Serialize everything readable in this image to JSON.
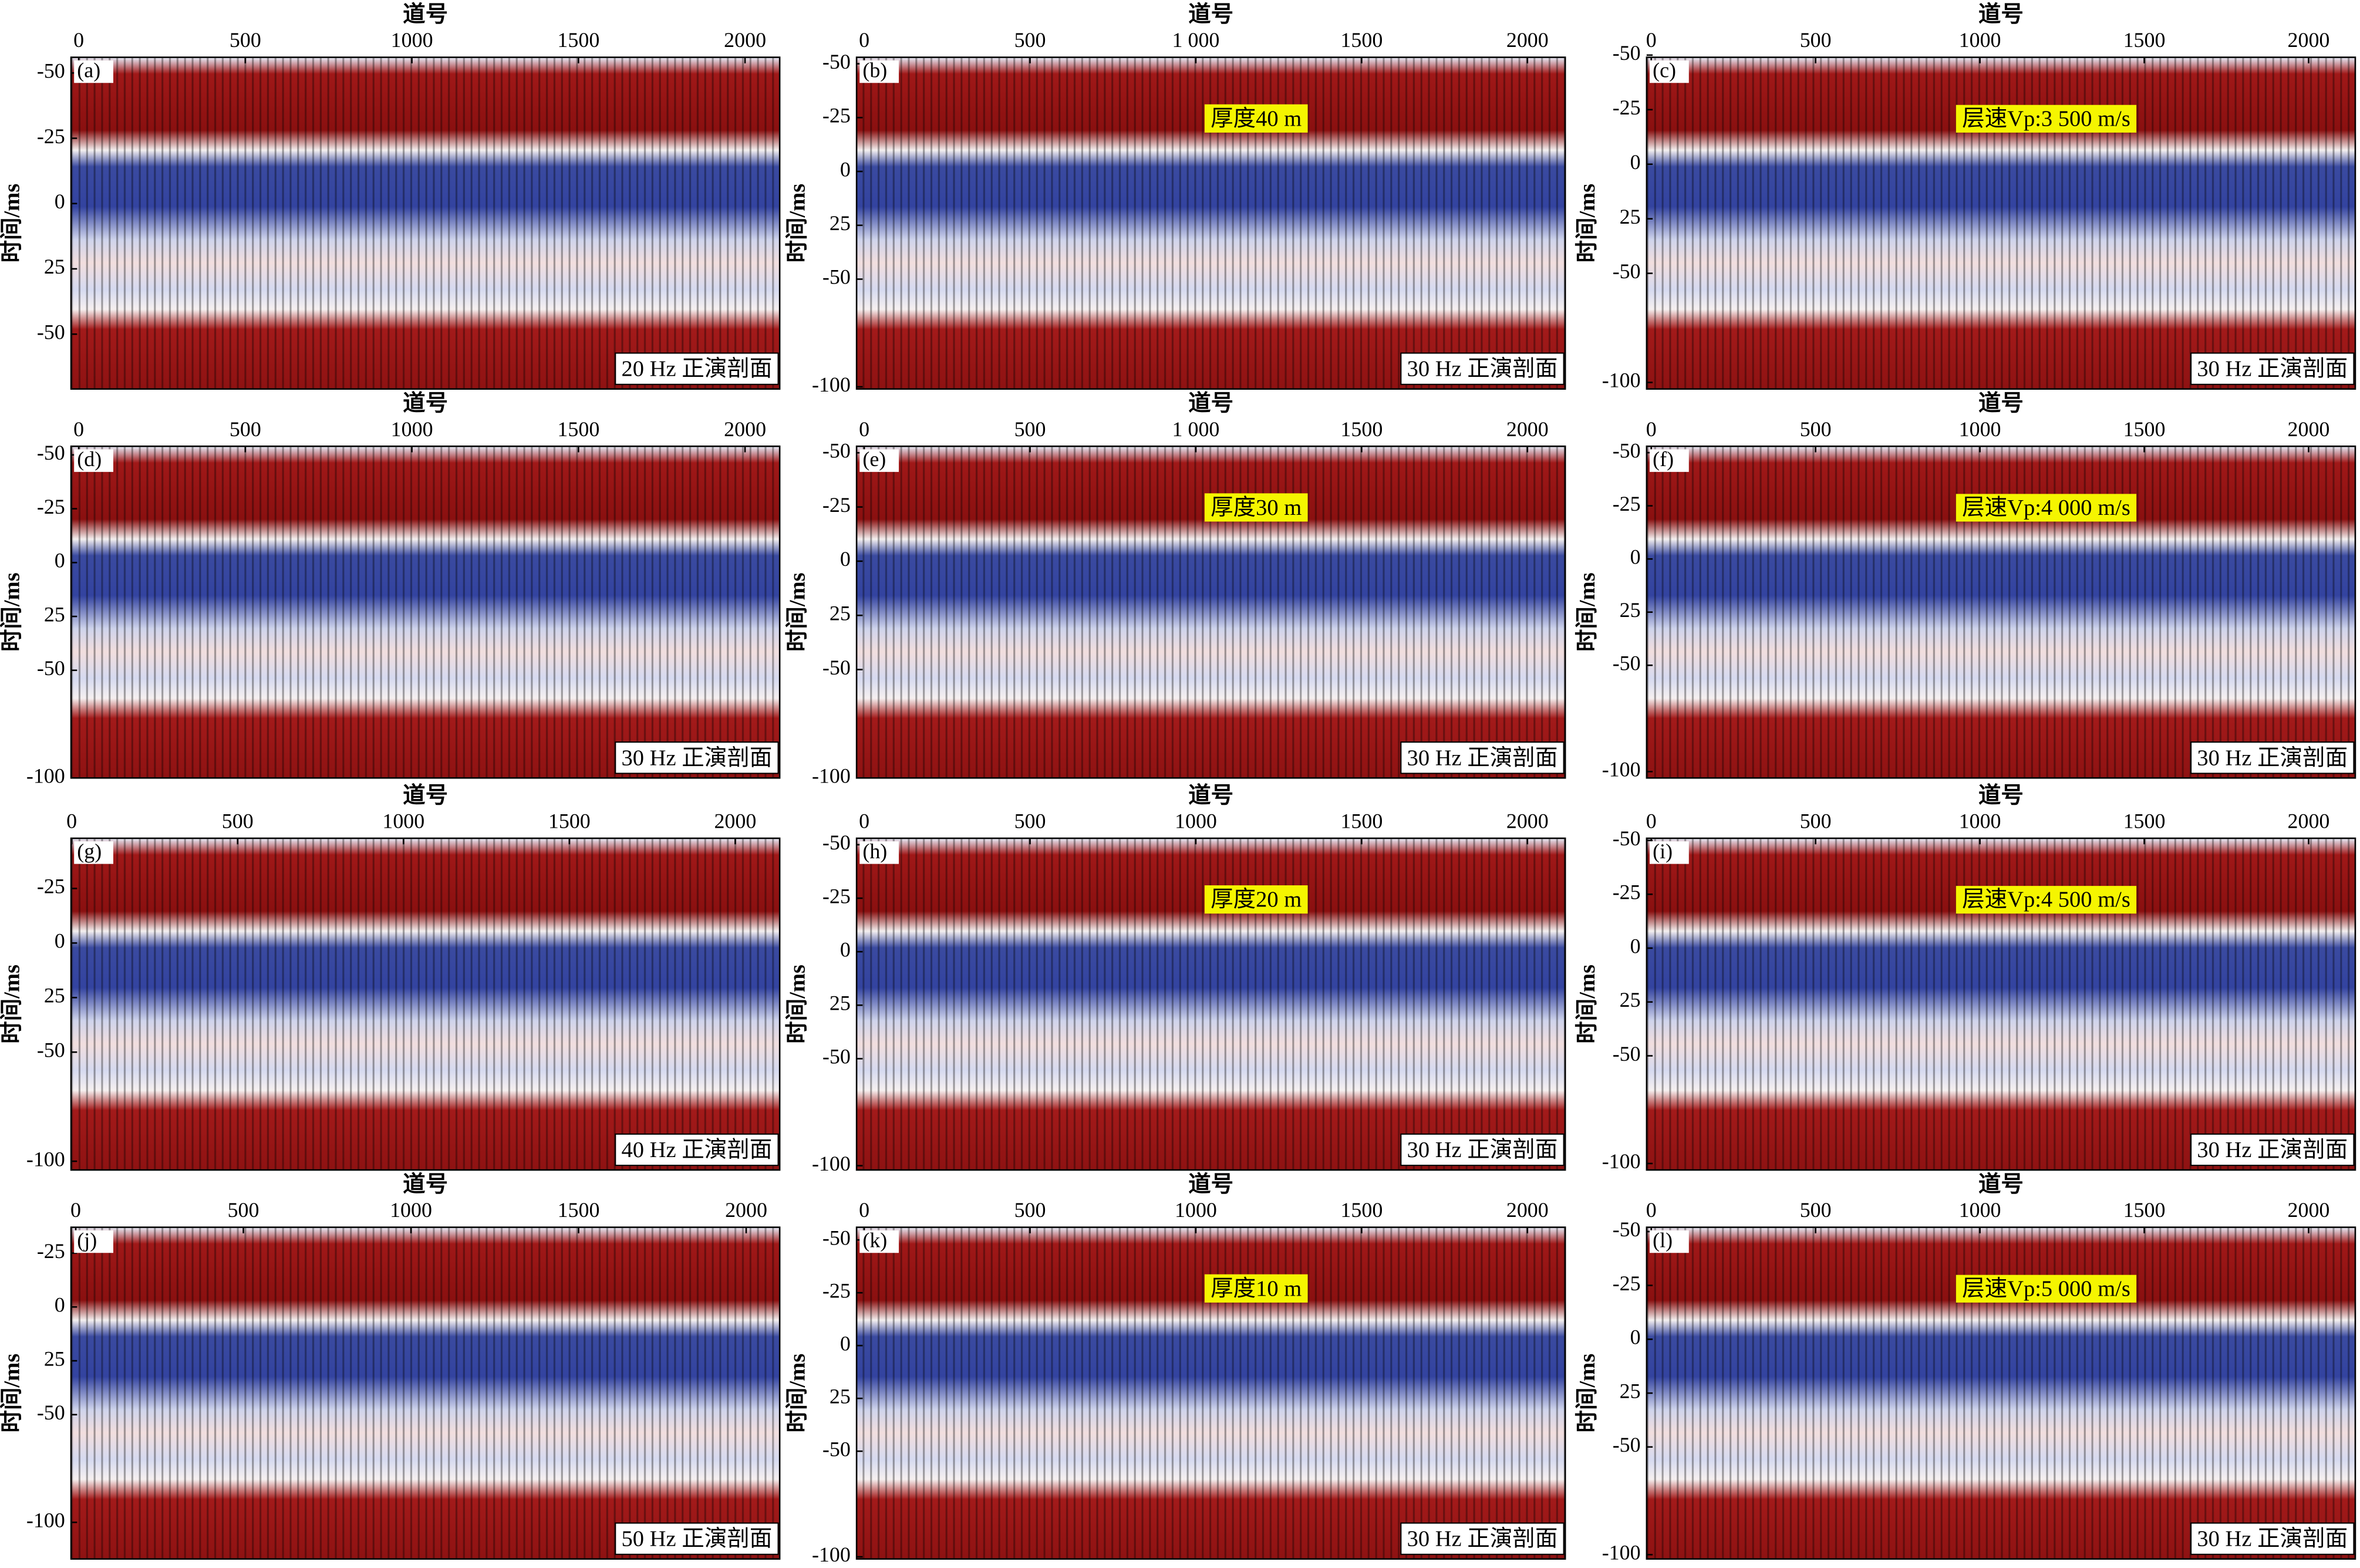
{
  "chart_data": [
    {
      "type": "seismic",
      "panel": "(a)",
      "xlabel": "道号",
      "ylabel": "时间/ms",
      "annotation": "20 Hz 正演剖面",
      "xlim": [
        -23,
        2104
      ],
      "xticks": [
        0,
        500,
        1000,
        1500,
        2000
      ],
      "ylim": [
        -56,
        71
      ],
      "yticks": [
        -50,
        -25,
        0,
        25,
        {
          "value": 50,
          "label": "-50"
        }
      ],
      "y_reversed": true
    },
    {
      "type": "seismic",
      "panel": "(b)",
      "xlabel": "道号",
      "ylabel": "时间/ms",
      "annotation": "30 Hz 正演剖面",
      "note": "厚度40 m",
      "xlim": [
        -23,
        2114
      ],
      "xticks": [
        0,
        500,
        {
          "value": 1000,
          "label": "1 000"
        },
        1500,
        2000
      ],
      "ylim": [
        -53,
        101
      ],
      "yticks": [
        -50,
        -25,
        0,
        25,
        {
          "value": 50,
          "label": "-50"
        },
        {
          "value": 100,
          "label": "-100"
        }
      ],
      "y_reversed": true
    },
    {
      "type": "seismic",
      "panel": "(c)",
      "xlabel": "道号",
      "ylabel": "时间/ms",
      "annotation": "30 Hz 正演剖面",
      "note": "层速Vp:3 500 m/s",
      "xlim": [
        -14,
        2142
      ],
      "xticks": [
        0,
        500,
        1000,
        1500,
        2000
      ],
      "ylim": [
        -49,
        103
      ],
      "yticks": [
        -50,
        -25,
        0,
        25,
        {
          "value": 50,
          "label": "-50"
        },
        {
          "value": 100,
          "label": "-100"
        }
      ],
      "y_reversed": true
    },
    {
      "type": "seismic",
      "panel": "(d)",
      "xlabel": "道号",
      "ylabel": "时间/ms",
      "annotation": "30 Hz 正演剖面",
      "xlim": [
        -23,
        2104
      ],
      "xticks": [
        0,
        500,
        1000,
        1500,
        2000
      ],
      "ylim": [
        -54,
        100
      ],
      "yticks": [
        -50,
        -25,
        0,
        25,
        {
          "value": 50,
          "label": "-50"
        },
        {
          "value": 100,
          "label": "-100"
        }
      ],
      "y_reversed": true
    },
    {
      "type": "seismic",
      "panel": "(e)",
      "xlabel": "道号",
      "ylabel": "时间/ms",
      "annotation": "30 Hz 正演剖面",
      "note": "厚度30 m",
      "xlim": [
        -23,
        2114
      ],
      "xticks": [
        0,
        500,
        {
          "value": 1000,
          "label": "1 000"
        },
        1500,
        2000
      ],
      "ylim": [
        -53,
        100
      ],
      "yticks": [
        -50,
        -25,
        0,
        25,
        {
          "value": 50,
          "label": "-50"
        },
        {
          "value": 100,
          "label": "-100"
        }
      ],
      "y_reversed": true
    },
    {
      "type": "seismic",
      "panel": "(f)",
      "xlabel": "道号",
      "ylabel": "时间/ms",
      "annotation": "30 Hz 正演剖面",
      "note": "层速Vp:4 000 m/s",
      "xlim": [
        -14,
        2142
      ],
      "xticks": [
        0,
        500,
        1000,
        1500,
        2000
      ],
      "ylim": [
        -53,
        103
      ],
      "yticks": [
        -50,
        -25,
        0,
        25,
        {
          "value": 50,
          "label": "-50"
        },
        {
          "value": 100,
          "label": "-100"
        }
      ],
      "y_reversed": true
    },
    {
      "type": "seismic",
      "panel": "(g)",
      "xlabel": "道号",
      "ylabel": "时间/ms",
      "annotation": "40 Hz 正演剖面",
      "xlim": [
        -2,
        2134
      ],
      "xticks": [
        0,
        500,
        1000,
        1500,
        2000
      ],
      "ylim": [
        -48,
        104
      ],
      "yticks": [
        -25,
        0,
        25,
        {
          "value": 50,
          "label": "-50"
        },
        {
          "value": 100,
          "label": "-100"
        }
      ],
      "y_reversed": true
    },
    {
      "type": "seismic",
      "panel": "(h)",
      "xlabel": "道号",
      "ylabel": "时间/ms",
      "annotation": "30 Hz 正演剖面",
      "note": "厚度20 m",
      "xlim": [
        -23,
        2114
      ],
      "xticks": [
        0,
        500,
        1000,
        1500,
        2000
      ],
      "ylim": [
        -53,
        102
      ],
      "yticks": [
        -50,
        -25,
        0,
        25,
        {
          "value": 50,
          "label": "-50"
        },
        {
          "value": 100,
          "label": "-100"
        }
      ],
      "y_reversed": true
    },
    {
      "type": "seismic",
      "panel": "(i)",
      "xlabel": "道号",
      "ylabel": "时间/ms",
      "annotation": "30 Hz 正演剖面",
      "note": "层速Vp:4 500 m/s",
      "xlim": [
        -14,
        2142
      ],
      "xticks": [
        0,
        500,
        1000,
        1500,
        2000
      ],
      "ylim": [
        -51,
        103
      ],
      "yticks": [
        -50,
        -25,
        0,
        25,
        {
          "value": 50,
          "label": "-50"
        },
        {
          "value": 100,
          "label": "-100"
        }
      ],
      "y_reversed": true
    },
    {
      "type": "seismic",
      "panel": "(j)",
      "xlabel": "道号",
      "ylabel": "时间/ms",
      "annotation": "50 Hz 正演剖面",
      "xlim": [
        -14,
        2100
      ],
      "xticks": [
        0,
        500,
        1000,
        1500,
        2000
      ],
      "ylim": [
        -37,
        117
      ],
      "yticks": [
        -25,
        0,
        25,
        {
          "value": 50,
          "label": "-50"
        },
        {
          "value": 100,
          "label": "-100"
        }
      ],
      "y_reversed": true
    },
    {
      "type": "seismic",
      "panel": "(k)",
      "xlabel": "道号",
      "ylabel": "时间/ms",
      "annotation": "30 Hz 正演剖面",
      "note": "厚度10 m",
      "xlim": [
        -23,
        2114
      ],
      "xticks": [
        0,
        500,
        1000,
        1500,
        2000
      ],
      "ylim": [
        -56,
        101
      ],
      "yticks": [
        -50,
        -25,
        0,
        25,
        {
          "value": 50,
          "label": "-50"
        },
        {
          "value": 100,
          "label": "-100"
        }
      ],
      "y_reversed": true
    },
    {
      "type": "seismic",
      "panel": "(l)",
      "xlabel": "道号",
      "ylabel": "时间/ms",
      "annotation": "30 Hz 正演剖面",
      "note": "层速Vp:5 000 m/s",
      "xlim": [
        -14,
        2142
      ],
      "xticks": [
        0,
        500,
        1000,
        1500,
        2000
      ],
      "ylim": [
        -52,
        102
      ],
      "yticks": [
        -50,
        -25,
        0,
        25,
        {
          "value": 50,
          "label": "-50"
        },
        {
          "value": 100,
          "label": "-100"
        }
      ],
      "y_reversed": true
    }
  ]
}
